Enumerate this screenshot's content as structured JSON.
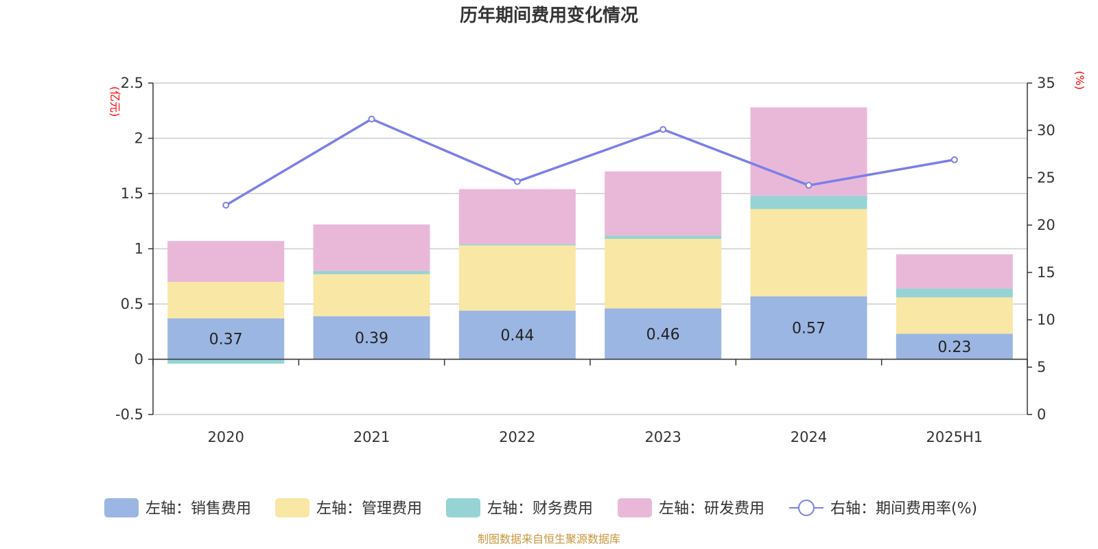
{
  "chart_data": {
    "type": "bar",
    "title": "历年期间费用变化情况",
    "categories": [
      "2020",
      "2021",
      "2022",
      "2023",
      "2024",
      "2025H1"
    ],
    "left_axis": {
      "unit": "(亿元)",
      "ylim": [
        -0.5,
        2.5
      ],
      "ticks": [
        "2.5",
        "2",
        "1.5",
        "1",
        "0.5",
        "0",
        "-0.5"
      ],
      "tick_values": [
        2.5,
        2,
        1.5,
        1,
        0.5,
        0,
        -0.5
      ]
    },
    "right_axis": {
      "unit": "(%)",
      "ylim": [
        0,
        35
      ],
      "ticks": [
        "35",
        "30",
        "25",
        "20",
        "15",
        "10",
        "5",
        "0"
      ],
      "tick_values": [
        35,
        30,
        25,
        20,
        15,
        10,
        5,
        0
      ]
    },
    "stacked_series": [
      {
        "name": "左轴：销售费用",
        "color": "#9bb6e2",
        "values": [
          0.37,
          0.39,
          0.44,
          0.46,
          0.57,
          0.23
        ],
        "labels": [
          "0.37",
          "0.39",
          "0.44",
          "0.46",
          "0.57",
          "0.23"
        ]
      },
      {
        "name": "左轴：管理费用",
        "color": "#f9e7a6",
        "values": [
          0.33,
          0.38,
          0.59,
          0.63,
          0.79,
          0.33
        ]
      },
      {
        "name": "左轴：财务费用",
        "color": "#96d3d4",
        "values": [
          -0.04,
          0.03,
          0.01,
          0.03,
          0.12,
          0.08
        ]
      },
      {
        "name": "左轴：研发费用",
        "color": "#e9b8d9",
        "values": [
          0.37,
          0.42,
          0.5,
          0.58,
          0.8,
          0.31
        ]
      }
    ],
    "line_series": {
      "name": "右轴：期间费用率(%)",
      "color": "#7b7fe8",
      "values": [
        22.1,
        31.2,
        24.6,
        30.1,
        24.2,
        26.9
      ]
    },
    "grid": true,
    "legend_position": "bottom"
  },
  "source_text": "制图数据来自恒生聚源数据库"
}
